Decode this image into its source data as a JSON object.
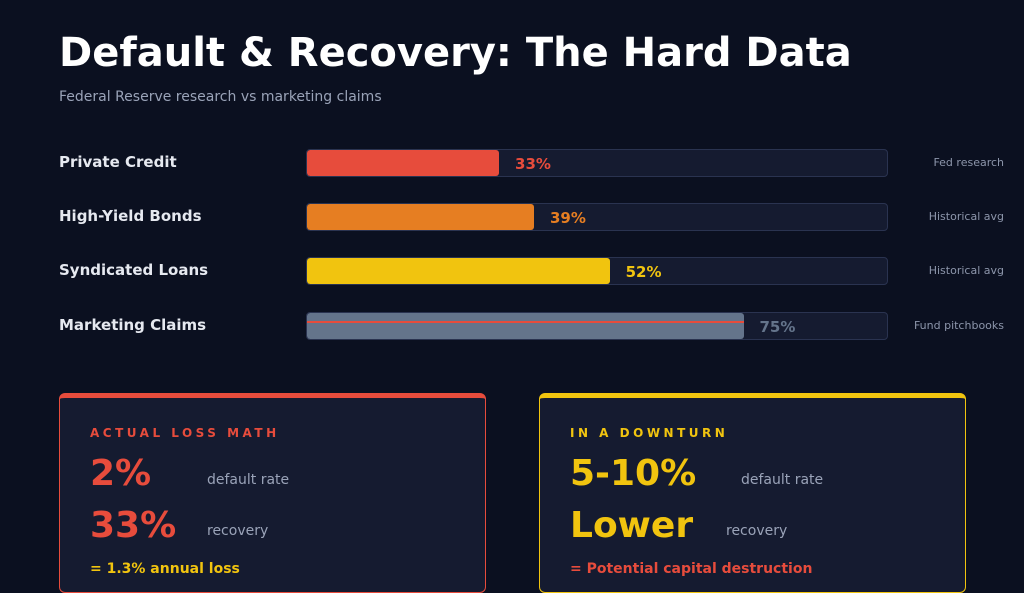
{
  "header": {
    "title": "Default & Recovery: The Hard Data",
    "subtitle": "Federal Reserve research vs marketing claims"
  },
  "chart_data": {
    "type": "bar",
    "orientation": "horizontal",
    "title": "Default & Recovery: The Hard Data",
    "categories": [
      "Private Credit",
      "High-Yield Bonds",
      "Syndicated Loans",
      "Marketing Claims"
    ],
    "values": [
      33,
      39,
      52,
      75
    ],
    "value_labels": [
      "33%",
      "39%",
      "52%",
      "75%"
    ],
    "sources": [
      "Fed research",
      "Historical avg",
      "Historical avg",
      "Fund pitchbooks"
    ],
    "colors": [
      "#e74c3c",
      "#e67e22",
      "#f1c40f",
      "#64748b"
    ],
    "xlim": [
      0,
      100
    ]
  },
  "cards": [
    {
      "title": "ACTUAL LOSS MATH",
      "color": "#e74c3c",
      "big1": "2%",
      "desc1": "default rate",
      "big2": "33%",
      "desc2": "recovery",
      "conclusion": "= 1.3% annual loss",
      "conclusion_color": "#f1c40f"
    },
    {
      "title": "IN A DOWNTURN",
      "color": "#f1c40f",
      "big1": "5-10%",
      "desc1": "default rate",
      "big2": "Lower",
      "desc2": "recovery",
      "conclusion": "= Potential capital destruction",
      "conclusion_color": "#e74c3c"
    }
  ]
}
